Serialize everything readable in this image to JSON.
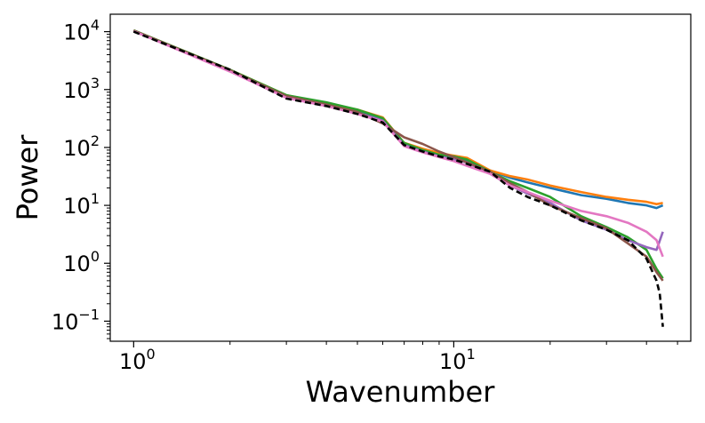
{
  "chart_data": {
    "type": "line",
    "title": "",
    "xlabel": "Wavenumber",
    "ylabel": "Power",
    "xscale": "log",
    "yscale": "log",
    "xlim": [
      0.845,
      55
    ],
    "ylim": [
      0.045,
      20000
    ],
    "grid": false,
    "legend": "none",
    "xticks": [
      {
        "value": 1,
        "base": "10",
        "exp": "0"
      },
      {
        "value": 10,
        "base": "10",
        "exp": "1"
      }
    ],
    "yticks": [
      {
        "value": 0.1,
        "base": "10",
        "exp": "−1"
      },
      {
        "value": 1,
        "base": "10",
        "exp": "0"
      },
      {
        "value": 10,
        "base": "10",
        "exp": "1"
      },
      {
        "value": 100,
        "base": "10",
        "exp": "2"
      },
      {
        "value": 1000,
        "base": "10",
        "exp": "3"
      },
      {
        "value": 10000,
        "base": "10",
        "exp": "4"
      }
    ],
    "series": [
      {
        "name": "series-blue",
        "color": "#1f77b4",
        "style": "solid",
        "points": [
          [
            1,
            10500
          ],
          [
            2,
            2200
          ],
          [
            3,
            780
          ],
          [
            4,
            560
          ],
          [
            5,
            420
          ],
          [
            6,
            300
          ],
          [
            7,
            115
          ],
          [
            8,
            90
          ],
          [
            9,
            75
          ],
          [
            10,
            68
          ],
          [
            11,
            60
          ],
          [
            13,
            40
          ],
          [
            15,
            30
          ],
          [
            17,
            25
          ],
          [
            20,
            20
          ],
          [
            25,
            15
          ],
          [
            30,
            13
          ],
          [
            35,
            11
          ],
          [
            40,
            10
          ],
          [
            43,
            9
          ],
          [
            45,
            10
          ]
        ]
      },
      {
        "name": "series-orange",
        "color": "#ff7f0e",
        "style": "solid",
        "points": [
          [
            1,
            10500
          ],
          [
            2,
            2200
          ],
          [
            3,
            800
          ],
          [
            4,
            580
          ],
          [
            5,
            450
          ],
          [
            6,
            330
          ],
          [
            7,
            120
          ],
          [
            8,
            95
          ],
          [
            9,
            80
          ],
          [
            10,
            72
          ],
          [
            11,
            66
          ],
          [
            13,
            40
          ],
          [
            15,
            32
          ],
          [
            17,
            28
          ],
          [
            20,
            22
          ],
          [
            25,
            17
          ],
          [
            30,
            14
          ],
          [
            35,
            12.5
          ],
          [
            40,
            11.5
          ],
          [
            43,
            10.5
          ],
          [
            45,
            11
          ]
        ]
      },
      {
        "name": "series-green",
        "color": "#2ca02c",
        "style": "solid",
        "points": [
          [
            1,
            10500
          ],
          [
            2,
            2200
          ],
          [
            3,
            800
          ],
          [
            4,
            600
          ],
          [
            5,
            450
          ],
          [
            6,
            320
          ],
          [
            7,
            120
          ],
          [
            8,
            90
          ],
          [
            9,
            75
          ],
          [
            10,
            70
          ],
          [
            11,
            62
          ],
          [
            13,
            38
          ],
          [
            15,
            26
          ],
          [
            17,
            20
          ],
          [
            20,
            14
          ],
          [
            25,
            6.5
          ],
          [
            30,
            4.2
          ],
          [
            35,
            2.8
          ],
          [
            40,
            1.7
          ],
          [
            43,
            0.8
          ],
          [
            45,
            0.55
          ]
        ]
      },
      {
        "name": "series-purple",
        "color": "#9467bd",
        "style": "solid",
        "points": [
          [
            1,
            10300
          ],
          [
            2,
            2100
          ],
          [
            3,
            740
          ],
          [
            4,
            530
          ],
          [
            5,
            400
          ],
          [
            6,
            290
          ],
          [
            7,
            110
          ],
          [
            8,
            85
          ],
          [
            9,
            70
          ],
          [
            10,
            62
          ],
          [
            11,
            55
          ],
          [
            13,
            35
          ],
          [
            15,
            22
          ],
          [
            17,
            16
          ],
          [
            20,
            11
          ],
          [
            25,
            5.5
          ],
          [
            30,
            3.8
          ],
          [
            35,
            2.5
          ],
          [
            40,
            1.9
          ],
          [
            43,
            1.7
          ],
          [
            45,
            3.5
          ]
        ]
      },
      {
        "name": "series-brown",
        "color": "#8c564b",
        "style": "solid",
        "points": [
          [
            1,
            10400
          ],
          [
            2,
            2150
          ],
          [
            3,
            770
          ],
          [
            4,
            550
          ],
          [
            5,
            410
          ],
          [
            6,
            260
          ],
          [
            7,
            150
          ],
          [
            8,
            115
          ],
          [
            9,
            85
          ],
          [
            10,
            68
          ],
          [
            11,
            55
          ],
          [
            13,
            38
          ],
          [
            15,
            24
          ],
          [
            17,
            17
          ],
          [
            20,
            10
          ],
          [
            25,
            6
          ],
          [
            30,
            4
          ],
          [
            35,
            2.2
          ],
          [
            40,
            1.3
          ],
          [
            43,
            0.7
          ],
          [
            45,
            0.5
          ]
        ]
      },
      {
        "name": "series-pink",
        "color": "#e377c2",
        "style": "solid",
        "points": [
          [
            1,
            10200
          ],
          [
            2,
            2050
          ],
          [
            3,
            720
          ],
          [
            4,
            520
          ],
          [
            5,
            380
          ],
          [
            6,
            280
          ],
          [
            7,
            105
          ],
          [
            8,
            82
          ],
          [
            9,
            68
          ],
          [
            10,
            58
          ],
          [
            11,
            48
          ],
          [
            13,
            35
          ],
          [
            15,
            22
          ],
          [
            17,
            17
          ],
          [
            20,
            12
          ],
          [
            25,
            8
          ],
          [
            30,
            6.5
          ],
          [
            35,
            5
          ],
          [
            40,
            3.5
          ],
          [
            43,
            2.5
          ],
          [
            45,
            1.3
          ]
        ]
      },
      {
        "name": "series-black-dashed",
        "color": "#000000",
        "style": "dashed",
        "points": [
          [
            1,
            10000
          ],
          [
            2,
            2200
          ],
          [
            3,
            700
          ],
          [
            4,
            520
          ],
          [
            5,
            380
          ],
          [
            6,
            270
          ],
          [
            7,
            110
          ],
          [
            8,
            85
          ],
          [
            9,
            70
          ],
          [
            10,
            62
          ],
          [
            11,
            52
          ],
          [
            13,
            38
          ],
          [
            15,
            20
          ],
          [
            17,
            14
          ],
          [
            20,
            10
          ],
          [
            25,
            5.5
          ],
          [
            30,
            3.8
          ],
          [
            35,
            2.5
          ],
          [
            40,
            1.2
          ],
          [
            43,
            0.5
          ],
          [
            44,
            0.3
          ],
          [
            45,
            0.08
          ]
        ]
      }
    ]
  }
}
